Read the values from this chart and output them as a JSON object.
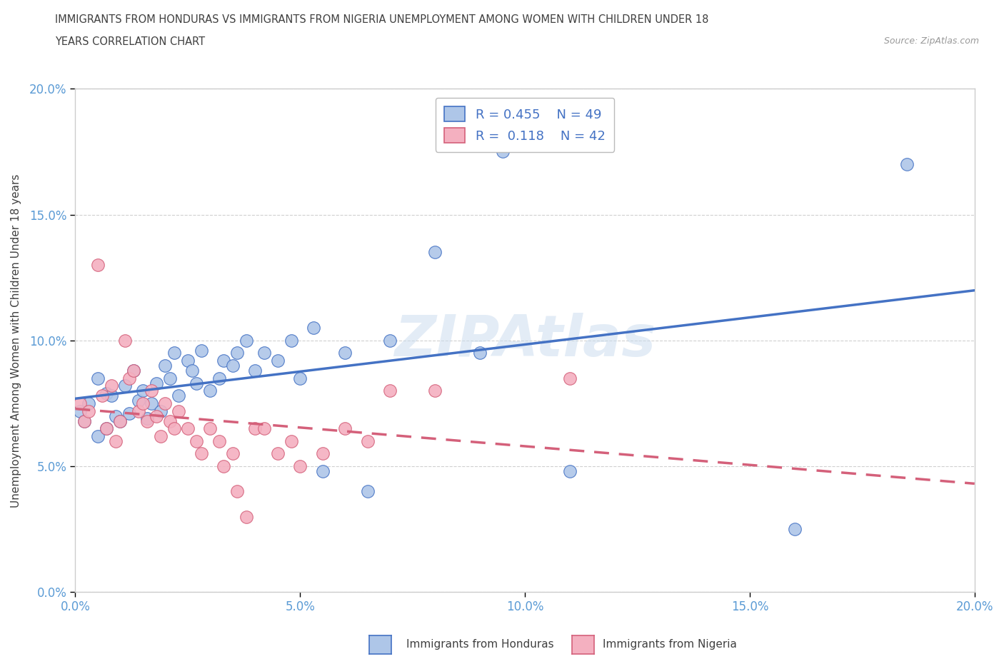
{
  "title_line1": "IMMIGRANTS FROM HONDURAS VS IMMIGRANTS FROM NIGERIA UNEMPLOYMENT AMONG WOMEN WITH CHILDREN UNDER 18",
  "title_line2": "YEARS CORRELATION CHART",
  "source": "Source: ZipAtlas.com",
  "ylabel": "Unemployment Among Women with Children Under 18 years",
  "xlim": [
    0.0,
    0.2
  ],
  "ylim": [
    0.0,
    0.2
  ],
  "xticks": [
    0.0,
    0.05,
    0.1,
    0.15,
    0.2
  ],
  "yticks": [
    0.0,
    0.05,
    0.1,
    0.15,
    0.2
  ],
  "watermark": "ZIPAtlas",
  "legend_r_honduras": "0.455",
  "legend_n_honduras": "49",
  "legend_r_nigeria": "0.118",
  "legend_n_nigeria": "42",
  "honduras_color": "#aec6e8",
  "honduras_edge": "#4472c4",
  "nigeria_color": "#f4b0c0",
  "nigeria_edge": "#d4607a",
  "trendline_honduras_color": "#4472c4",
  "trendline_nigeria_color": "#d4607a",
  "tick_color": "#5b9bd5",
  "title_color": "#404040",
  "watermark_color": "#ccddef",
  "bg_color": "#ffffff",
  "honduras_x": [
    0.001,
    0.002,
    0.003,
    0.005,
    0.005,
    0.007,
    0.007,
    0.008,
    0.009,
    0.01,
    0.011,
    0.012,
    0.013,
    0.014,
    0.015,
    0.016,
    0.017,
    0.018,
    0.019,
    0.02,
    0.021,
    0.022,
    0.023,
    0.025,
    0.026,
    0.027,
    0.028,
    0.03,
    0.032,
    0.033,
    0.035,
    0.036,
    0.038,
    0.04,
    0.042,
    0.045,
    0.048,
    0.05,
    0.053,
    0.055,
    0.06,
    0.065,
    0.07,
    0.08,
    0.09,
    0.095,
    0.11,
    0.16,
    0.185
  ],
  "honduras_y": [
    0.072,
    0.068,
    0.075,
    0.085,
    0.062,
    0.079,
    0.065,
    0.078,
    0.07,
    0.068,
    0.082,
    0.071,
    0.088,
    0.076,
    0.08,
    0.069,
    0.075,
    0.083,
    0.072,
    0.09,
    0.085,
    0.095,
    0.078,
    0.092,
    0.088,
    0.083,
    0.096,
    0.08,
    0.085,
    0.092,
    0.09,
    0.095,
    0.1,
    0.088,
    0.095,
    0.092,
    0.1,
    0.085,
    0.105,
    0.048,
    0.095,
    0.04,
    0.1,
    0.135,
    0.095,
    0.175,
    0.048,
    0.025,
    0.17
  ],
  "nigeria_x": [
    0.001,
    0.002,
    0.003,
    0.005,
    0.006,
    0.007,
    0.008,
    0.009,
    0.01,
    0.011,
    0.012,
    0.013,
    0.014,
    0.015,
    0.016,
    0.017,
    0.018,
    0.019,
    0.02,
    0.021,
    0.022,
    0.023,
    0.025,
    0.027,
    0.028,
    0.03,
    0.032,
    0.033,
    0.035,
    0.036,
    0.038,
    0.04,
    0.042,
    0.045,
    0.048,
    0.05,
    0.055,
    0.06,
    0.065,
    0.07,
    0.08,
    0.11
  ],
  "nigeria_y": [
    0.075,
    0.068,
    0.072,
    0.13,
    0.078,
    0.065,
    0.082,
    0.06,
    0.068,
    0.1,
    0.085,
    0.088,
    0.072,
    0.075,
    0.068,
    0.08,
    0.07,
    0.062,
    0.075,
    0.068,
    0.065,
    0.072,
    0.065,
    0.06,
    0.055,
    0.065,
    0.06,
    0.05,
    0.055,
    0.04,
    0.03,
    0.065,
    0.065,
    0.055,
    0.06,
    0.05,
    0.055,
    0.065,
    0.06,
    0.08,
    0.08,
    0.085
  ]
}
